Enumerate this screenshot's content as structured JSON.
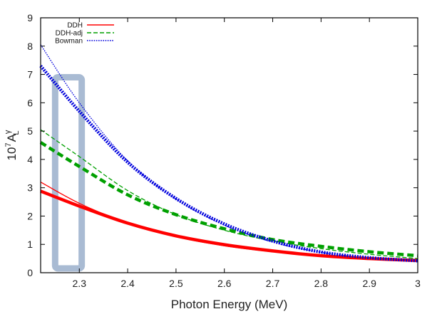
{
  "chart_data": {
    "type": "line",
    "title": "",
    "xlabel": "Photon Energy (MeV)",
    "ylabel": {
      "base": "10",
      "exp": "7",
      "main": "A",
      "sup": "γ",
      "sub": "L"
    },
    "xlim": [
      2.22,
      3.0
    ],
    "ylim": [
      0,
      9
    ],
    "xticks": [
      2.3,
      2.4,
      2.5,
      2.6,
      2.7,
      2.8,
      2.9,
      3
    ],
    "xtick_labels": [
      "2.3",
      "2.4",
      "2.5",
      "2.6",
      "2.7",
      "2.8",
      "2.9",
      "3"
    ],
    "yticks": [
      0,
      1,
      2,
      3,
      4,
      5,
      6,
      7,
      8,
      9
    ],
    "ytick_labels": [
      "0",
      "1",
      "2",
      "3",
      "4",
      "5",
      "6",
      "7",
      "8",
      "9"
    ],
    "grid": false,
    "legend_position": "top-left",
    "series": [
      {
        "name": "DDH",
        "legend": true,
        "variant": "thin",
        "color": "#ff0000",
        "dash": "solid",
        "x": [
          2.22,
          2.3,
          2.4,
          2.5,
          2.6,
          2.7,
          2.8,
          2.9,
          3.0
        ],
        "y": [
          3.2,
          2.45,
          1.75,
          1.27,
          0.95,
          0.74,
          0.6,
          0.5,
          0.44
        ]
      },
      {
        "name": "DDH-adj",
        "legend": true,
        "variant": "thin",
        "color": "#00a000",
        "dash": "dashed",
        "x": [
          2.22,
          2.3,
          2.4,
          2.5,
          2.6,
          2.7,
          2.8,
          2.9,
          3.0
        ],
        "y": [
          5.05,
          4.1,
          2.9,
          2.05,
          1.5,
          1.12,
          0.85,
          0.65,
          0.5
        ]
      },
      {
        "name": "Bowman",
        "legend": true,
        "variant": "thin",
        "color": "#0000dd",
        "dash": "dotted",
        "x": [
          2.22,
          2.3,
          2.4,
          2.5,
          2.6,
          2.7,
          2.8,
          2.9,
          3.0
        ],
        "y": [
          8.05,
          6.0,
          3.95,
          2.6,
          1.68,
          1.08,
          0.72,
          0.52,
          0.42
        ]
      },
      {
        "name": "DDH",
        "legend": false,
        "variant": "thick",
        "color": "#ff0000",
        "dash": "solid",
        "x": [
          2.22,
          2.3,
          2.4,
          2.5,
          2.6,
          2.7,
          2.8,
          2.9,
          3.0
        ],
        "y": [
          2.88,
          2.35,
          1.75,
          1.3,
          0.99,
          0.77,
          0.6,
          0.5,
          0.43
        ]
      },
      {
        "name": "DDH-adj",
        "legend": false,
        "variant": "thick",
        "color": "#00a000",
        "dash": "dashed",
        "x": [
          2.22,
          2.3,
          2.4,
          2.5,
          2.6,
          2.7,
          2.8,
          2.9,
          3.0
        ],
        "y": [
          4.6,
          3.75,
          2.75,
          2.05,
          1.55,
          1.17,
          0.93,
          0.74,
          0.6
        ]
      },
      {
        "name": "Bowman",
        "legend": false,
        "variant": "thick",
        "color": "#0000dd",
        "dash": "dotted",
        "x": [
          2.22,
          2.3,
          2.4,
          2.5,
          2.6,
          2.7,
          2.8,
          2.9,
          3.0
        ],
        "y": [
          7.3,
          5.7,
          3.9,
          2.62,
          1.72,
          1.12,
          0.73,
          0.53,
          0.42
        ]
      }
    ],
    "annotations": [
      {
        "type": "rectangle",
        "x_range": [
          2.25,
          2.305
        ],
        "y_range": [
          0.15,
          6.9
        ],
        "color": "#a9bbd3"
      }
    ]
  }
}
